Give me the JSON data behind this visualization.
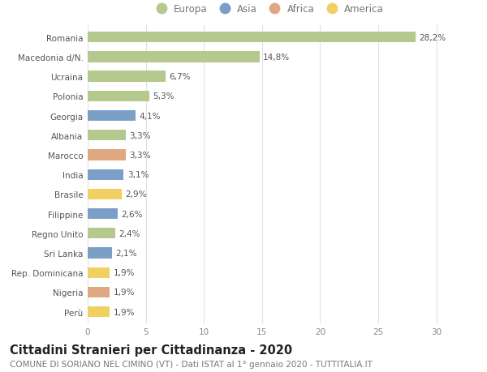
{
  "countries": [
    "Romania",
    "Macedonia d/N.",
    "Ucraina",
    "Polonia",
    "Georgia",
    "Albania",
    "Marocco",
    "India",
    "Brasile",
    "Filippine",
    "Regno Unito",
    "Sri Lanka",
    "Rep. Dominicana",
    "Nigeria",
    "Perù"
  ],
  "values": [
    28.2,
    14.8,
    6.7,
    5.3,
    4.1,
    3.3,
    3.3,
    3.1,
    2.9,
    2.6,
    2.4,
    2.1,
    1.9,
    1.9,
    1.9
  ],
  "labels": [
    "28,2%",
    "14,8%",
    "6,7%",
    "5,3%",
    "4,1%",
    "3,3%",
    "3,3%",
    "3,1%",
    "2,9%",
    "2,6%",
    "2,4%",
    "2,1%",
    "1,9%",
    "1,9%",
    "1,9%"
  ],
  "continents": [
    "Europa",
    "Europa",
    "Europa",
    "Europa",
    "Asia",
    "Europa",
    "Africa",
    "Asia",
    "America",
    "Asia",
    "Europa",
    "Asia",
    "America",
    "Africa",
    "America"
  ],
  "continent_colors": {
    "Europa": "#b5c98e",
    "Asia": "#7b9fc7",
    "Africa": "#e0a882",
    "America": "#f0d060"
  },
  "legend_order": [
    "Europa",
    "Asia",
    "Africa",
    "America"
  ],
  "title": "Cittadini Stranieri per Cittadinanza - 2020",
  "subtitle": "COMUNE DI SORIANO NEL CIMINO (VT) - Dati ISTAT al 1° gennaio 2020 - TUTTITALIA.IT",
  "xlim": [
    0,
    31
  ],
  "xticks": [
    0,
    5,
    10,
    15,
    20,
    25,
    30
  ],
  "background_color": "#ffffff",
  "grid_color": "#e0e0e0",
  "bar_height": 0.55,
  "title_fontsize": 10.5,
  "subtitle_fontsize": 7.5,
  "label_fontsize": 7.5,
  "tick_fontsize": 7.5,
  "legend_fontsize": 8.5
}
